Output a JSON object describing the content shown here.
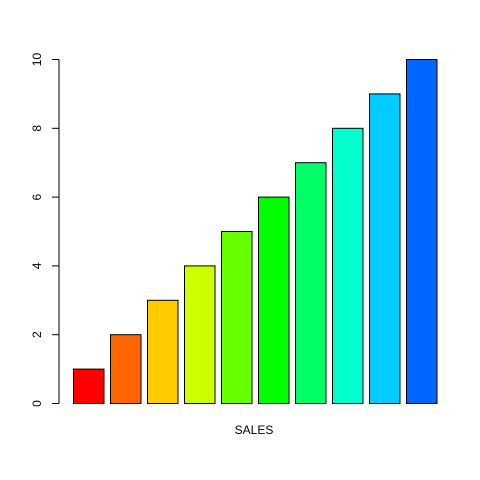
{
  "chart_data": {
    "type": "bar",
    "categories": [
      "",
      "",
      "",
      "",
      "",
      "",
      "",
      "",
      "",
      ""
    ],
    "values": [
      1,
      2,
      3,
      4,
      5,
      6,
      7,
      8,
      9,
      10
    ],
    "colors": [
      "#FF0000",
      "#FF6600",
      "#FFCC00",
      "#CCFF00",
      "#66FF00",
      "#00FF00",
      "#00FF66",
      "#00FFCC",
      "#00CCFF",
      "#0066FF"
    ],
    "title": "",
    "xlabel": "SALES",
    "ylabel": "",
    "ylim": [
      0,
      10
    ],
    "yticks": [
      "0",
      "2",
      "4",
      "6",
      "8",
      "10"
    ],
    "grid": false,
    "legend": "none"
  }
}
